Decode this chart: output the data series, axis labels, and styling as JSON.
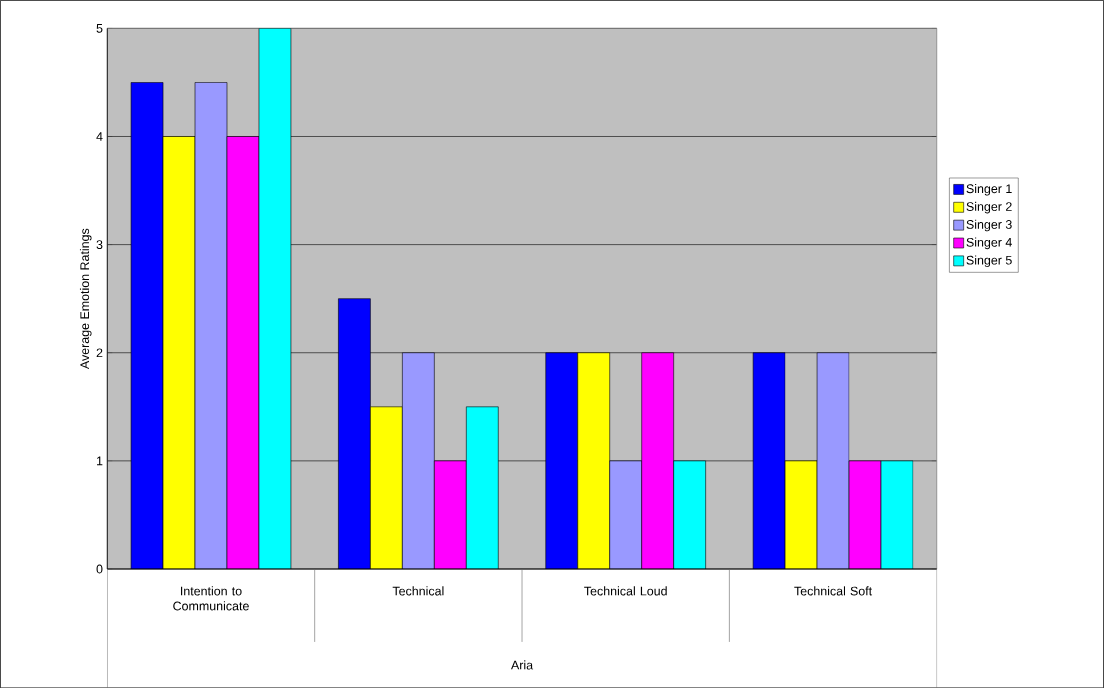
{
  "chart_data": {
    "type": "bar",
    "xlabel": "Aria",
    "ylabel": "Average Emotion Ratings",
    "categories": [
      "Intention to Communicate",
      "Technical",
      "Technical Loud",
      "Technical Soft"
    ],
    "series": [
      {
        "name": "Singer 1",
        "color": "#0000ff",
        "values": [
          4.5,
          2.5,
          2,
          2
        ]
      },
      {
        "name": "Singer 2",
        "color": "#ffff00",
        "values": [
          4,
          1.5,
          2,
          1
        ]
      },
      {
        "name": "Singer 3",
        "color": "#9999ff",
        "values": [
          4.5,
          2,
          1,
          2
        ]
      },
      {
        "name": "Singer 4",
        "color": "#ff00ff",
        "values": [
          4,
          1,
          2,
          1
        ]
      },
      {
        "name": "Singer 5",
        "color": "#00ffff",
        "values": [
          5,
          1.5,
          1,
          1
        ]
      }
    ],
    "ylim": [
      0,
      5
    ],
    "yticks": [
      0,
      1,
      2,
      3,
      4,
      5
    ],
    "grid": "y",
    "legend": "right"
  }
}
